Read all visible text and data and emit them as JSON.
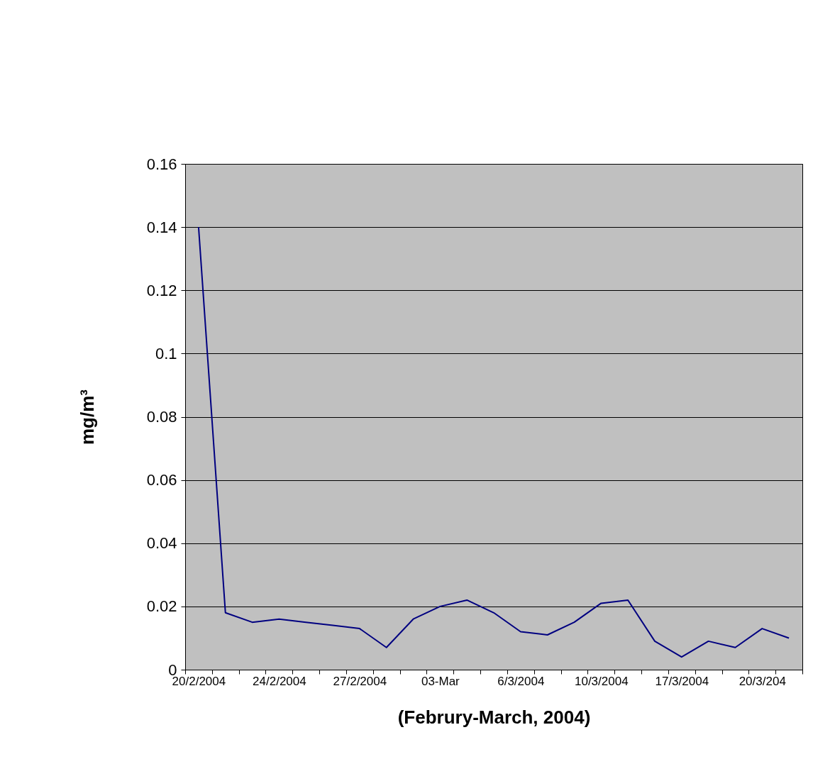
{
  "chart_data": {
    "type": "line",
    "xlabel": "(Februry-March, 2004)",
    "ylabel": "mg/m³",
    "categories": [
      "20/2/2004",
      null,
      null,
      "24/2/2004",
      null,
      null,
      "27/2/2004",
      null,
      null,
      "03-Mar",
      null,
      null,
      "6/3/2004",
      null,
      null,
      "10/3/2004",
      null,
      null,
      "17/3/2004",
      null,
      null,
      "20/3/204",
      null
    ],
    "series": [
      {
        "color": "#000080",
        "values": [
          0.14,
          0.018,
          0.015,
          0.016,
          0.015,
          0.014,
          0.013,
          0.007,
          0.016,
          0.02,
          0.022,
          0.018,
          0.012,
          0.011,
          0.015,
          0.021,
          0.022,
          0.009,
          0.004,
          0.009,
          0.007,
          0.013,
          0.01
        ]
      }
    ],
    "ylim": [
      0,
      0.16
    ],
    "yticks": [
      0,
      0.02,
      0.04,
      0.06,
      0.08,
      0.1,
      0.12,
      0.14,
      0.16
    ],
    "grid": "y",
    "marker": "none",
    "line_style": "solid"
  }
}
